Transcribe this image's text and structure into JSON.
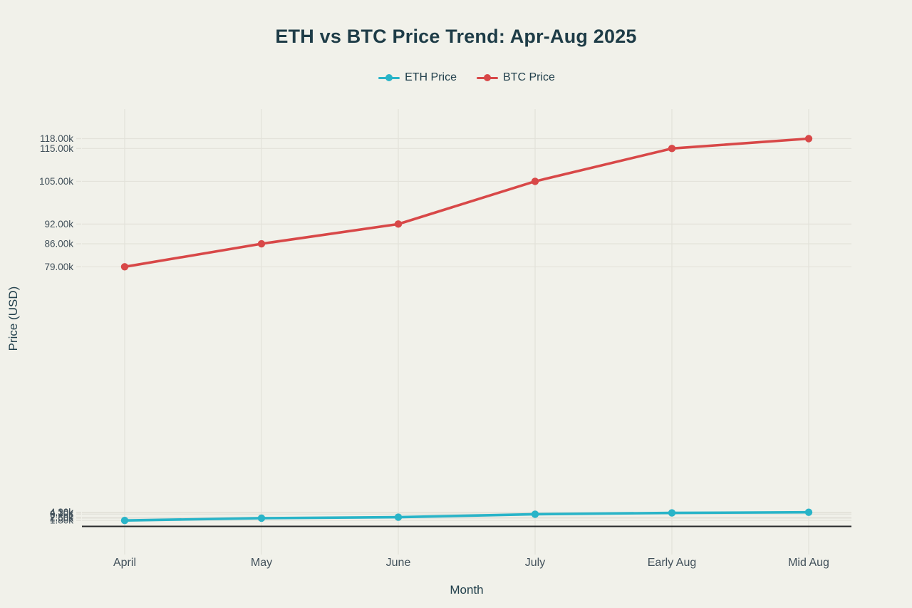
{
  "title": "ETH vs BTC Price Trend: Apr-Aug 2025",
  "legend": {
    "items": [
      {
        "label": "ETH Price",
        "color": "#29b4c8"
      },
      {
        "label": "BTC Price",
        "color": "#d84848"
      }
    ]
  },
  "chart_data": {
    "type": "line",
    "x": [
      "April",
      "May",
      "June",
      "July",
      "Early Aug",
      "Mid Aug"
    ],
    "series": [
      {
        "name": "ETH Price",
        "color": "#29b4c8",
        "values_k": [
          1.8,
          2.5,
          2.8,
          3.7,
          4.1,
          4.3
        ],
        "tick_labels": [
          "1.80k",
          "2.50k",
          "2.80k",
          "3.70k",
          "4.10k",
          "4.30k"
        ]
      },
      {
        "name": "BTC Price",
        "color": "#d84848",
        "values_k": [
          79,
          86,
          92,
          105,
          115,
          118
        ],
        "tick_labels": [
          "79.00k",
          "86.00k",
          "92.00k",
          "105.00k",
          "115.00k",
          "118.00k"
        ]
      }
    ],
    "title": "ETH vs BTC Price Trend: Apr-Aug 2025",
    "xlabel": "Month",
    "ylabel": "Price (USD)",
    "ylim_k": [
      0,
      127
    ],
    "grid": true,
    "zeroline": true,
    "legend_position": "top-center",
    "marker": "circle"
  },
  "colors": {
    "background": "#f1f1ea",
    "grid": "#e3e2da",
    "tick_text": "#41505a",
    "heading_text": "#1e3c47",
    "zeroline": "#26282a"
  }
}
